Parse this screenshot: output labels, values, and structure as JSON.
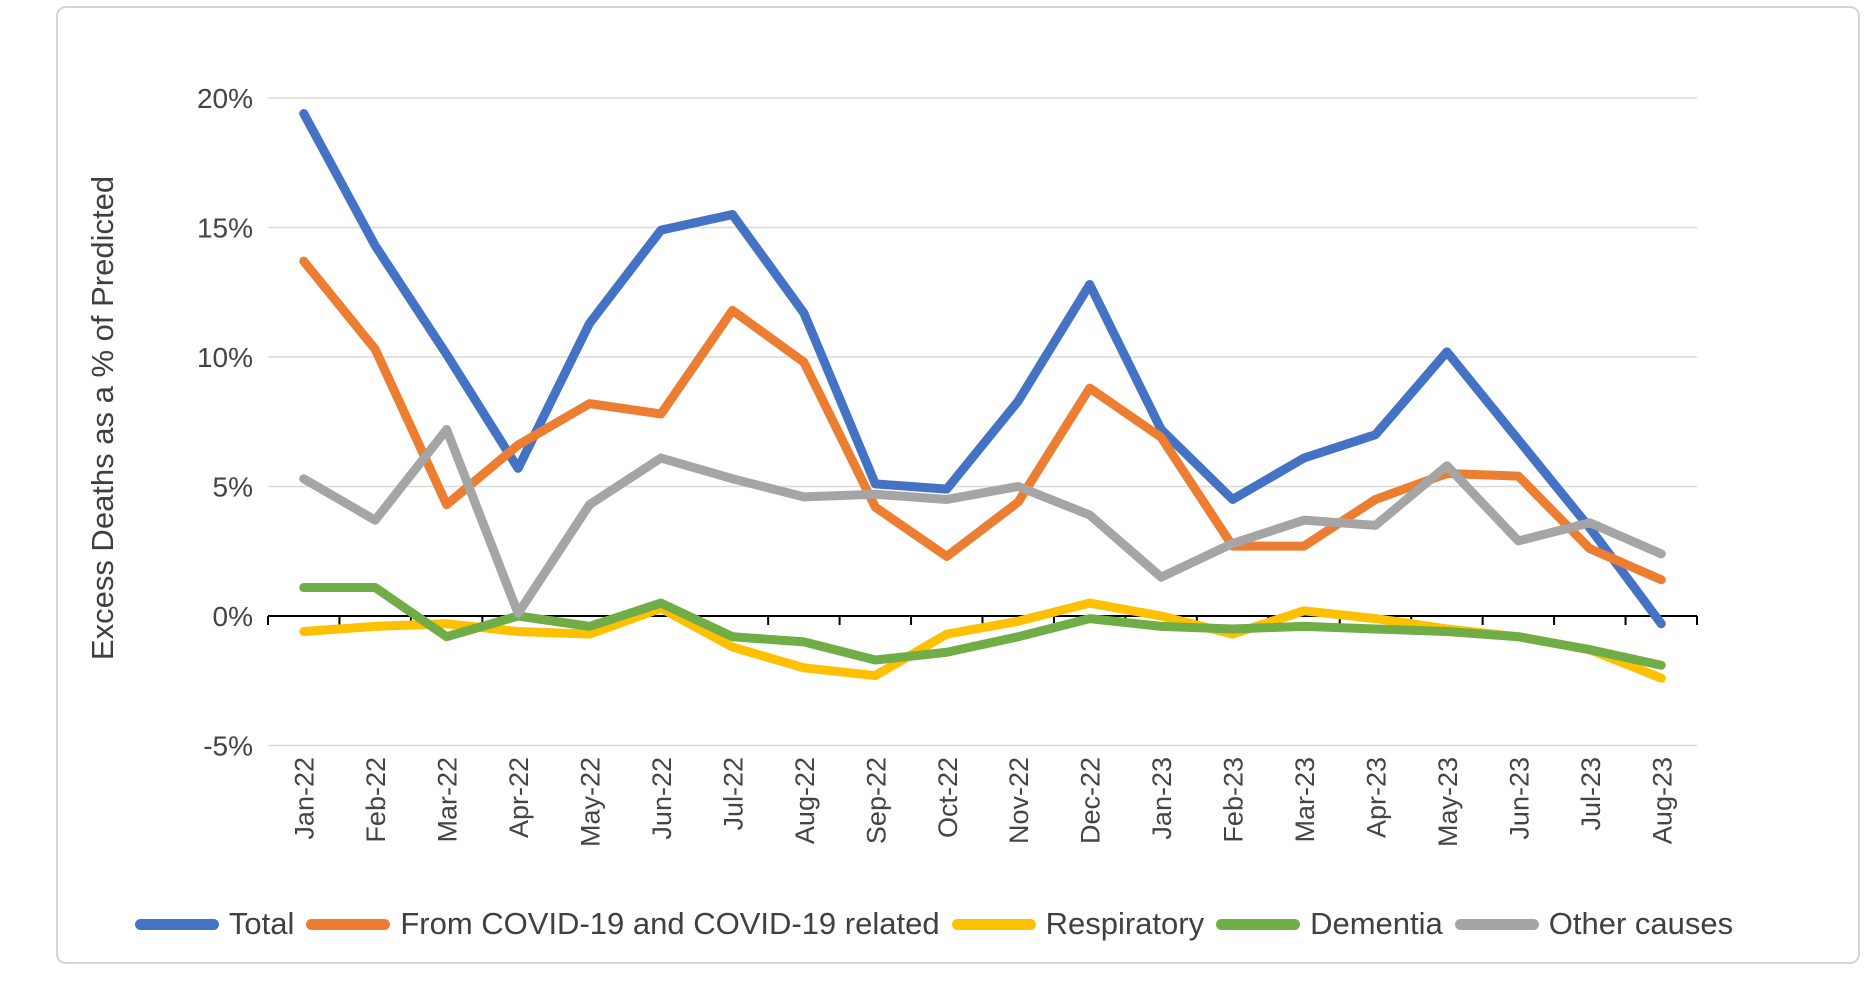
{
  "figure": {
    "background_color": "#ffffff",
    "border_color": "#d4d4d4",
    "gridline_color": "#d9d9d9",
    "axis_line_color": "#000000",
    "label_text_color": "#444444"
  },
  "chart_data": {
    "type": "line",
    "title": "",
    "xlabel": "",
    "ylabel": "Excess Deaths as a % of Predicted",
    "ylim": [
      -5,
      20
    ],
    "yticks": [
      20,
      15,
      10,
      5,
      0,
      -5
    ],
    "ytick_labels": [
      "20%",
      "15%",
      "10%",
      "5%",
      "0%",
      "-5%"
    ],
    "grid": true,
    "legend_position": "bottom",
    "x": [
      "Jan-22",
      "Feb-22",
      "Mar-22",
      "Apr-22",
      "May-22",
      "Jun-22",
      "Jul-22",
      "Aug-22",
      "Sep-22",
      "Oct-22",
      "Nov-22",
      "Dec-22",
      "Jan-23",
      "Feb-23",
      "Mar-23",
      "Apr-23",
      "May-23",
      "Jun-23",
      "Jul-23",
      "Aug-23"
    ],
    "series": [
      {
        "name": "Total",
        "color": "#4472C4",
        "values": [
          19.4,
          14.3,
          10.1,
          5.7,
          11.3,
          14.9,
          15.5,
          11.7,
          5.1,
          4.9,
          8.3,
          12.8,
          7.2,
          4.5,
          6.1,
          7.0,
          10.2,
          6.8,
          3.4,
          -0.3
        ]
      },
      {
        "name": "From COVID-19 and COVID-19 related",
        "color": "#ED7D31",
        "values": [
          13.7,
          10.3,
          4.3,
          6.6,
          8.2,
          7.8,
          11.8,
          9.8,
          4.2,
          2.3,
          4.4,
          8.8,
          6.9,
          2.7,
          2.7,
          4.5,
          5.5,
          5.4,
          2.6,
          1.4
        ]
      },
      {
        "name": "Respiratory",
        "color": "#FFC000",
        "values": [
          -0.6,
          -0.4,
          -0.3,
          -0.6,
          -0.7,
          0.3,
          -1.2,
          -2.0,
          -2.3,
          -0.7,
          -0.2,
          0.5,
          0.0,
          -0.7,
          0.2,
          -0.1,
          -0.5,
          -0.8,
          -1.3,
          -2.4
        ]
      },
      {
        "name": "Dementia",
        "color": "#70AD47",
        "values": [
          1.1,
          1.1,
          -0.8,
          0.0,
          -0.4,
          0.5,
          -0.8,
          -1.0,
          -1.7,
          -1.4,
          -0.8,
          -0.1,
          -0.4,
          -0.5,
          -0.4,
          -0.5,
          -0.6,
          -0.8,
          -1.3,
          -1.9
        ]
      },
      {
        "name": "Other causes",
        "color": "#A5A5A5",
        "values": [
          5.3,
          3.7,
          7.2,
          0.1,
          4.3,
          6.1,
          5.3,
          4.6,
          4.7,
          4.5,
          5.0,
          3.9,
          1.5,
          2.8,
          3.7,
          3.5,
          5.8,
          2.9,
          3.6,
          2.4
        ]
      }
    ]
  }
}
